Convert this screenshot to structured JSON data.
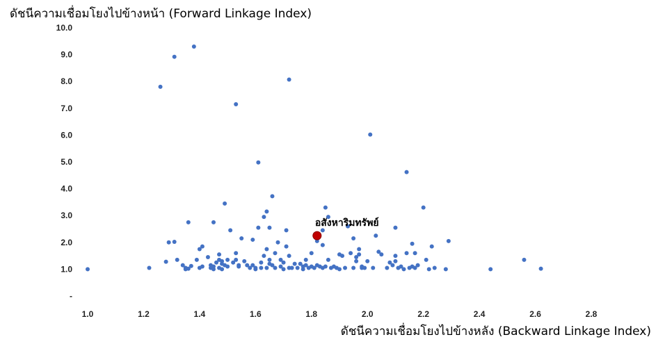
{
  "chart_data": {
    "type": "scatter",
    "ylabel": "ดัชนีความเชื่อมโยงไปข้างหน้า (Forward Linkage Index)",
    "xlabel": "ดัชนีความเชื่อมโยงไปข้างหลัง (Backward Linkage Index)",
    "xlim": [
      1.0,
      2.8
    ],
    "ylim": [
      0,
      10.0
    ],
    "x_ticks": [
      "1.0",
      "1.2",
      "1.4",
      "1.6",
      "1.8",
      "2.0",
      "2.2",
      "2.4",
      "2.6",
      "2.8"
    ],
    "y_ticks": [
      "-",
      "1.0",
      "2.0",
      "3.0",
      "4.0",
      "5.0",
      "6.0",
      "7.0",
      "8.0",
      "9.0",
      "10.0"
    ],
    "grid": false,
    "point_color": "#4472C4",
    "highlight_color": "#C00000",
    "highlight": {
      "label": "อสังหาริมทรัพย์",
      "x": 1.82,
      "y": 2.25
    },
    "points": [
      [
        1.0,
        1.0
      ],
      [
        1.22,
        1.05
      ],
      [
        1.26,
        7.8
      ],
      [
        1.28,
        1.28
      ],
      [
        1.29,
        2.0
      ],
      [
        1.31,
        8.92
      ],
      [
        1.31,
        2.02
      ],
      [
        1.32,
        1.35
      ],
      [
        1.34,
        1.15
      ],
      [
        1.35,
        1.05
      ],
      [
        1.35,
        1.0
      ],
      [
        1.36,
        1.02
      ],
      [
        1.36,
        2.75
      ],
      [
        1.37,
        1.12
      ],
      [
        1.38,
        9.3
      ],
      [
        1.39,
        1.35
      ],
      [
        1.4,
        1.75
      ],
      [
        1.4,
        1.05
      ],
      [
        1.41,
        1.85
      ],
      [
        1.41,
        1.1
      ],
      [
        1.43,
        1.45
      ],
      [
        1.44,
        1.05
      ],
      [
        1.44,
        1.15
      ],
      [
        1.45,
        1.0
      ],
      [
        1.45,
        1.1
      ],
      [
        1.45,
        2.75
      ],
      [
        1.46,
        1.25
      ],
      [
        1.47,
        1.35
      ],
      [
        1.47,
        1.55
      ],
      [
        1.47,
        1.05
      ],
      [
        1.48,
        1.2
      ],
      [
        1.48,
        1.3
      ],
      [
        1.48,
        1.0
      ],
      [
        1.49,
        1.15
      ],
      [
        1.49,
        3.45
      ],
      [
        1.5,
        1.35
      ],
      [
        1.5,
        1.1
      ],
      [
        1.51,
        2.45
      ],
      [
        1.52,
        1.25
      ],
      [
        1.53,
        7.15
      ],
      [
        1.53,
        1.35
      ],
      [
        1.53,
        1.6
      ],
      [
        1.54,
        1.1
      ],
      [
        1.54,
        1.15
      ],
      [
        1.55,
        2.15
      ],
      [
        1.56,
        1.3
      ],
      [
        1.57,
        1.15
      ],
      [
        1.58,
        1.05
      ],
      [
        1.59,
        1.15
      ],
      [
        1.59,
        2.1
      ],
      [
        1.6,
        1.0
      ],
      [
        1.6,
        1.05
      ],
      [
        1.61,
        2.55
      ],
      [
        1.61,
        4.98
      ],
      [
        1.62,
        1.25
      ],
      [
        1.62,
        1.05
      ],
      [
        1.63,
        1.5
      ],
      [
        1.63,
        2.95
      ],
      [
        1.64,
        3.15
      ],
      [
        1.64,
        1.75
      ],
      [
        1.64,
        1.05
      ],
      [
        1.65,
        1.35
      ],
      [
        1.65,
        1.2
      ],
      [
        1.65,
        2.55
      ],
      [
        1.66,
        3.72
      ],
      [
        1.66,
        1.15
      ],
      [
        1.67,
        1.6
      ],
      [
        1.67,
        1.05
      ],
      [
        1.68,
        2.0
      ],
      [
        1.69,
        1.35
      ],
      [
        1.69,
        1.1
      ],
      [
        1.7,
        1.0
      ],
      [
        1.7,
        1.25
      ],
      [
        1.71,
        1.85
      ],
      [
        1.71,
        2.45
      ],
      [
        1.72,
        1.05
      ],
      [
        1.72,
        1.5
      ],
      [
        1.72,
        8.07
      ],
      [
        1.73,
        1.05
      ],
      [
        1.74,
        1.2
      ],
      [
        1.75,
        1.05
      ],
      [
        1.76,
        1.2
      ],
      [
        1.77,
        1.0
      ],
      [
        1.77,
        1.1
      ],
      [
        1.78,
        1.15
      ],
      [
        1.78,
        1.35
      ],
      [
        1.79,
        1.05
      ],
      [
        1.8,
        1.1
      ],
      [
        1.8,
        1.6
      ],
      [
        1.81,
        1.05
      ],
      [
        1.82,
        1.15
      ],
      [
        1.82,
        2.05
      ],
      [
        1.83,
        1.1
      ],
      [
        1.84,
        1.05
      ],
      [
        1.84,
        2.45
      ],
      [
        1.84,
        1.9
      ],
      [
        1.85,
        1.1
      ],
      [
        1.85,
        3.3
      ],
      [
        1.86,
        1.35
      ],
      [
        1.86,
        2.95
      ],
      [
        1.87,
        1.05
      ],
      [
        1.88,
        1.1
      ],
      [
        1.89,
        1.05
      ],
      [
        1.9,
        1.0
      ],
      [
        1.9,
        1.55
      ],
      [
        1.91,
        1.5
      ],
      [
        1.92,
        1.05
      ],
      [
        1.93,
        2.6
      ],
      [
        1.94,
        1.6
      ],
      [
        1.95,
        1.05
      ],
      [
        1.95,
        2.15
      ],
      [
        1.96,
        1.45
      ],
      [
        1.96,
        1.3
      ],
      [
        1.97,
        1.55
      ],
      [
        1.97,
        1.75
      ],
      [
        1.98,
        1.1
      ],
      [
        1.98,
        1.05
      ],
      [
        1.99,
        1.05
      ],
      [
        2.0,
        1.3
      ],
      [
        2.01,
        6.02
      ],
      [
        2.02,
        1.05
      ],
      [
        2.03,
        2.25
      ],
      [
        2.04,
        1.65
      ],
      [
        2.05,
        1.55
      ],
      [
        2.07,
        1.05
      ],
      [
        2.08,
        1.25
      ],
      [
        2.09,
        1.15
      ],
      [
        2.1,
        1.5
      ],
      [
        2.1,
        1.3
      ],
      [
        2.1,
        2.55
      ],
      [
        2.11,
        1.05
      ],
      [
        2.12,
        1.1
      ],
      [
        2.13,
        1.0
      ],
      [
        2.14,
        4.62
      ],
      [
        2.14,
        1.6
      ],
      [
        2.15,
        1.05
      ],
      [
        2.16,
        1.95
      ],
      [
        2.16,
        1.1
      ],
      [
        2.17,
        1.6
      ],
      [
        2.17,
        1.05
      ],
      [
        2.18,
        1.15
      ],
      [
        2.2,
        3.3
      ],
      [
        2.21,
        1.35
      ],
      [
        2.22,
        1.0
      ],
      [
        2.23,
        1.85
      ],
      [
        2.24,
        1.05
      ],
      [
        2.28,
        1.0
      ],
      [
        2.29,
        2.05
      ],
      [
        2.44,
        1.0
      ],
      [
        2.56,
        1.35
      ],
      [
        2.62,
        1.02
      ]
    ]
  }
}
